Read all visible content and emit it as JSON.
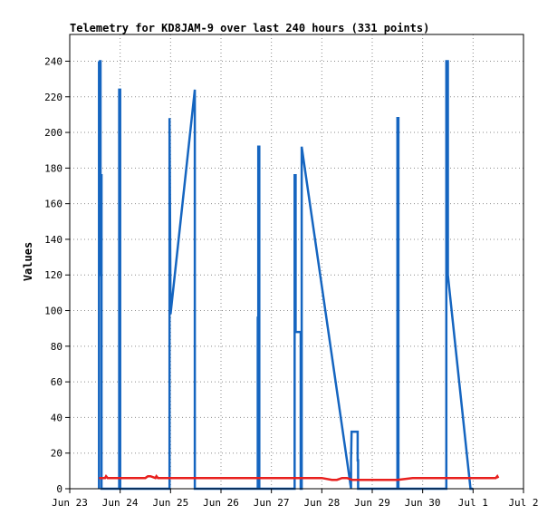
{
  "chart_data": {
    "type": "line",
    "title": "Telemetry for KD8JAM-9 over last 240 hours (331 points)",
    "xlabel": "",
    "ylabel": "Values",
    "x_tick_labels": [
      "Jun 23",
      "Jun 24",
      "Jun 25",
      "Jun 26",
      "Jun 27",
      "Jun 28",
      "Jun 29",
      "Jun 30",
      "Jul 1",
      "Jul 2"
    ],
    "xlim": [
      0,
      9
    ],
    "ylim": [
      0,
      255
    ],
    "y_ticks": [
      0,
      20,
      40,
      60,
      80,
      100,
      120,
      140,
      160,
      180,
      200,
      220,
      240
    ],
    "grid": true,
    "series": [
      {
        "color": "#1565c0",
        "x": [
          0.58,
          0.58,
          0.6,
          0.6,
          0.61,
          0.61,
          0.62,
          0.62,
          0.63,
          0.63,
          0.64,
          0.64,
          0.66,
          0.66,
          0.98,
          0.98,
          1.0,
          1.0,
          1.98,
          1.98,
          2.0,
          2.48,
          2.48,
          2.5,
          2.5,
          3.73,
          3.73,
          3.74,
          3.74,
          3.76,
          3.76,
          4.46,
          4.46,
          4.48,
          4.48,
          4.58,
          4.58,
          4.6,
          4.6,
          5.58,
          5.58,
          5.59,
          5.71,
          5.71,
          5.72,
          5.72,
          5.74,
          5.74,
          6.5,
          6.5,
          6.52,
          6.52,
          7.47,
          7.47,
          7.5,
          7.5,
          7.95,
          7.95,
          8.0
        ],
        "y": [
          0,
          240,
          120,
          240,
          240,
          120,
          120,
          176,
          176,
          0,
          0,
          0,
          0,
          0,
          0,
          224,
          224,
          0,
          0,
          208,
          98,
          224,
          0,
          0,
          0,
          0,
          96,
          96,
          192,
          192,
          0,
          0,
          176,
          176,
          88,
          88,
          0,
          0,
          192,
          0,
          16,
          32,
          32,
          16,
          16,
          0,
          0,
          0,
          0,
          208,
          208,
          0,
          0,
          240,
          240,
          120,
          0,
          0,
          0
        ]
      },
      {
        "color": "#e8201e",
        "x": [
          0.58,
          0.7,
          0.72,
          0.75,
          1.0,
          1.5,
          1.55,
          1.6,
          1.7,
          1.72,
          1.75,
          2.0,
          2.5,
          2.8,
          3.0,
          3.3,
          3.5,
          3.73,
          4.0,
          4.5,
          4.8,
          5.0,
          5.2,
          5.25,
          5.3,
          5.4,
          5.5,
          5.6,
          5.8,
          6.0,
          6.1,
          6.2,
          6.5,
          6.8,
          7.0,
          7.2,
          7.5,
          7.8,
          8.0,
          8.3,
          8.45,
          8.48,
          8.5
        ],
        "y": [
          6,
          6,
          7,
          6,
          6,
          6,
          7,
          7,
          6,
          7,
          6,
          6,
          6,
          6,
          6,
          6,
          6,
          6,
          6,
          6,
          6,
          6,
          5,
          5,
          5,
          6,
          6,
          5,
          5,
          5,
          5,
          5,
          5,
          6,
          6,
          6,
          6,
          6,
          6,
          6,
          6,
          7,
          6
        ]
      }
    ]
  }
}
